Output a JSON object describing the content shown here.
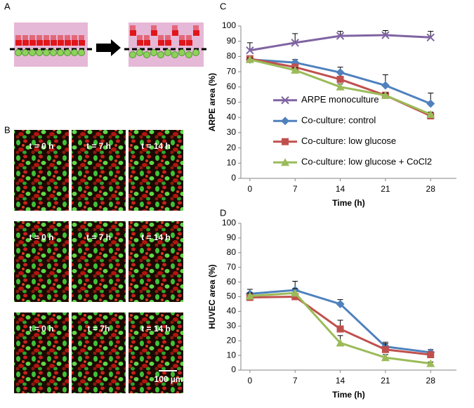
{
  "panel_labels": [
    "A",
    "B",
    "C",
    "D"
  ],
  "micrographs": {
    "rows": [
      [
        "t = 0 h",
        "t = 7 h",
        "t = 14 h"
      ],
      [
        "t = 0 h",
        "t = 7 h",
        "t = 14 h"
      ],
      [
        "t = 0 h",
        "t = 7h",
        "t = 14 h"
      ]
    ],
    "scale_bar": "100 µm"
  },
  "chart_data": [
    {
      "type": "line",
      "y_label": "ARPE area (%)",
      "x_label": "Time (h)",
      "x": [
        0,
        7,
        14,
        21,
        28
      ],
      "xlim": [
        -1.4,
        32
      ],
      "xticks": [
        0,
        7,
        14,
        21,
        28
      ],
      "ylim": [
        0,
        100
      ],
      "yticks": [
        0,
        10,
        20,
        30,
        40,
        50,
        60,
        70,
        80,
        90,
        100
      ],
      "legend": "lower-center",
      "series": [
        {
          "name": "ARPE monoculture",
          "color": "#8064a2",
          "marker": "x",
          "values": [
            84,
            89,
            93.5,
            94,
            92.5
          ],
          "errors": [
            5,
            6,
            3,
            3,
            4
          ]
        },
        {
          "name": "Co-culture: control",
          "color": "#4f81bd",
          "marker": "diamond",
          "values": [
            78,
            76,
            69.5,
            61,
            49
          ],
          "errors": [
            2,
            2,
            3.5,
            7,
            7
          ]
        },
        {
          "name": "Co-culture: low glucose",
          "color": "#c0504d",
          "marker": "square",
          "values": [
            78.5,
            73,
            65,
            54.5,
            41
          ],
          "errors": [
            1,
            1.5,
            2,
            2,
            1.5
          ]
        },
        {
          "name": "Co-culture: low glucose + CoCl2",
          "color": "#9bbb59",
          "marker": "triangle",
          "values": [
            78,
            71,
            60,
            54.5,
            42
          ],
          "errors": [
            1,
            1.5,
            2,
            1.5,
            1.5
          ]
        }
      ]
    },
    {
      "type": "line",
      "y_label": "HUVEC area (%)",
      "x_label": "Time (h)",
      "x": [
        0,
        7,
        14,
        21,
        28
      ],
      "xlim": [
        -1.4,
        32
      ],
      "xticks": [
        0,
        7,
        14,
        21,
        28
      ],
      "ylim": [
        0,
        100
      ],
      "yticks": [
        0,
        10,
        20,
        30,
        40,
        50,
        60,
        70,
        80,
        90,
        100
      ],
      "series": [
        {
          "color": "#4f81bd",
          "marker": "diamond",
          "values": [
            52,
            54.5,
            45,
            16,
            12
          ],
          "errors": [
            3,
            6,
            3,
            3,
            2
          ]
        },
        {
          "color": "#c0504d",
          "marker": "square",
          "values": [
            49.5,
            50,
            28,
            14,
            10.5
          ],
          "errors": [
            3,
            2,
            6,
            4,
            2
          ]
        },
        {
          "color": "#9bbb59",
          "marker": "triangle",
          "values": [
            50.5,
            52.5,
            18.5,
            8.5,
            4.5
          ],
          "errors": [
            2,
            3,
            5,
            2,
            1
          ]
        }
      ]
    }
  ]
}
